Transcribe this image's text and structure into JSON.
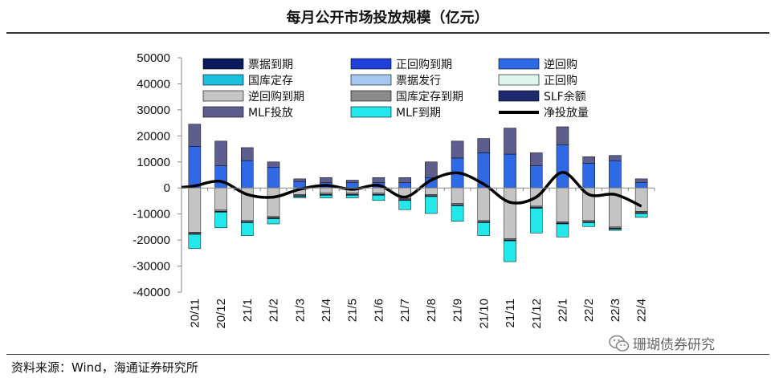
{
  "title": "每月公开市场投放规模（亿元）",
  "source": "资料来源：Wind，海通证券研究所",
  "watermark": {
    "text": "珊瑚债券研究",
    "icon": "wechat-icon"
  },
  "chart_data": {
    "type": "bar",
    "stacked": true,
    "title": "每月公开市场投放规模（亿元）",
    "xlabel": "",
    "ylabel": "",
    "ylim": [
      -40000,
      50000
    ],
    "yticks": [
      50000,
      40000,
      30000,
      20000,
      10000,
      0,
      -10000,
      -20000,
      -30000,
      -40000
    ],
    "legend_position": "top-left",
    "categories": [
      "20/11",
      "20/12",
      "21/1",
      "21/2",
      "21/3",
      "21/4",
      "21/5",
      "21/6",
      "21/7",
      "21/8",
      "21/9",
      "21/10",
      "21/11",
      "21/12",
      "22/1",
      "22/2",
      "22/3",
      "22/4"
    ],
    "series": [
      {
        "name": "票据到期",
        "color": "#0a1a5c",
        "values": [
          0,
          0,
          0,
          0,
          0,
          0,
          0,
          0,
          0,
          0,
          0,
          0,
          0,
          0,
          0,
          0,
          0,
          0
        ]
      },
      {
        "name": "正回购到期",
        "color": "#1f3fd8",
        "values": [
          0,
          0,
          0,
          0,
          0,
          0,
          0,
          0,
          0,
          0,
          0,
          0,
          0,
          0,
          0,
          0,
          0,
          0
        ]
      },
      {
        "name": "逆回购",
        "color": "#2e6ae6",
        "values": [
          16000,
          8500,
          10500,
          8000,
          2500,
          2000,
          2000,
          2000,
          2000,
          4000,
          11500,
          13500,
          13000,
          8500,
          16500,
          9500,
          10500,
          2000
        ]
      },
      {
        "name": "国库定存",
        "color": "#1cc0df",
        "values": [
          0,
          0,
          0,
          0,
          0,
          0,
          0,
          0,
          0,
          0,
          0,
          0,
          0,
          0,
          0,
          0,
          0,
          0
        ]
      },
      {
        "name": "票据发行",
        "color": "#a6c8f0",
        "values": [
          0,
          0,
          0,
          0,
          0,
          0,
          0,
          0,
          0,
          0,
          0,
          0,
          0,
          0,
          0,
          0,
          0,
          0
        ]
      },
      {
        "name": "正回购",
        "color": "#dcf6ee",
        "values": [
          0,
          0,
          0,
          0,
          0,
          0,
          0,
          0,
          0,
          0,
          0,
          0,
          0,
          0,
          0,
          0,
          0,
          0
        ]
      },
      {
        "name": "逆回购到期",
        "color": "#c4c4c4",
        "values": [
          -17000,
          -8500,
          -12500,
          -11000,
          -2500,
          -2000,
          -2000,
          -2000,
          -4000,
          -2500,
          -6000,
          -12500,
          -19500,
          -7000,
          -13000,
          -12500,
          -15000,
          -9000
        ]
      },
      {
        "name": "国库定存到期",
        "color": "#8a8a8a",
        "values": [
          -500,
          -500,
          -500,
          -500,
          -500,
          -500,
          -500,
          -500,
          -500,
          -500,
          -500,
          -500,
          -500,
          -500,
          -500,
          -500,
          -500,
          -500
        ]
      },
      {
        "name": "SLF余额",
        "color": "#1e2a6e",
        "values": [
          -300,
          -300,
          -300,
          -300,
          -300,
          -300,
          -300,
          -300,
          -300,
          -300,
          -300,
          -300,
          -300,
          -300,
          -300,
          -300,
          -300,
          -300
        ]
      },
      {
        "name": "MLF投放",
        "color": "#5e5e8e",
        "values": [
          8500,
          9500,
          5000,
          2000,
          1000,
          2000,
          1000,
          2000,
          2000,
          6000,
          6500,
          5500,
          10000,
          5000,
          7000,
          2500,
          2000,
          1500
        ]
      },
      {
        "name": "MLF到期",
        "color": "#22e8ec",
        "values": [
          -5500,
          -6000,
          -5000,
          -2000,
          -500,
          -1000,
          -1000,
          -2000,
          -3500,
          -6500,
          -6000,
          -5000,
          -8000,
          -9500,
          -5000,
          -1500,
          -500,
          -1500
        ]
      },
      {
        "name": "净投放量",
        "type": "line",
        "color": "#000000",
        "values": [
          800,
          2500,
          -2500,
          -3500,
          -500,
          1000,
          -500,
          1000,
          -3500,
          3000,
          5800,
          1500,
          -5500,
          -3500,
          6000,
          -2500,
          -2500,
          -7000
        ]
      }
    ]
  }
}
